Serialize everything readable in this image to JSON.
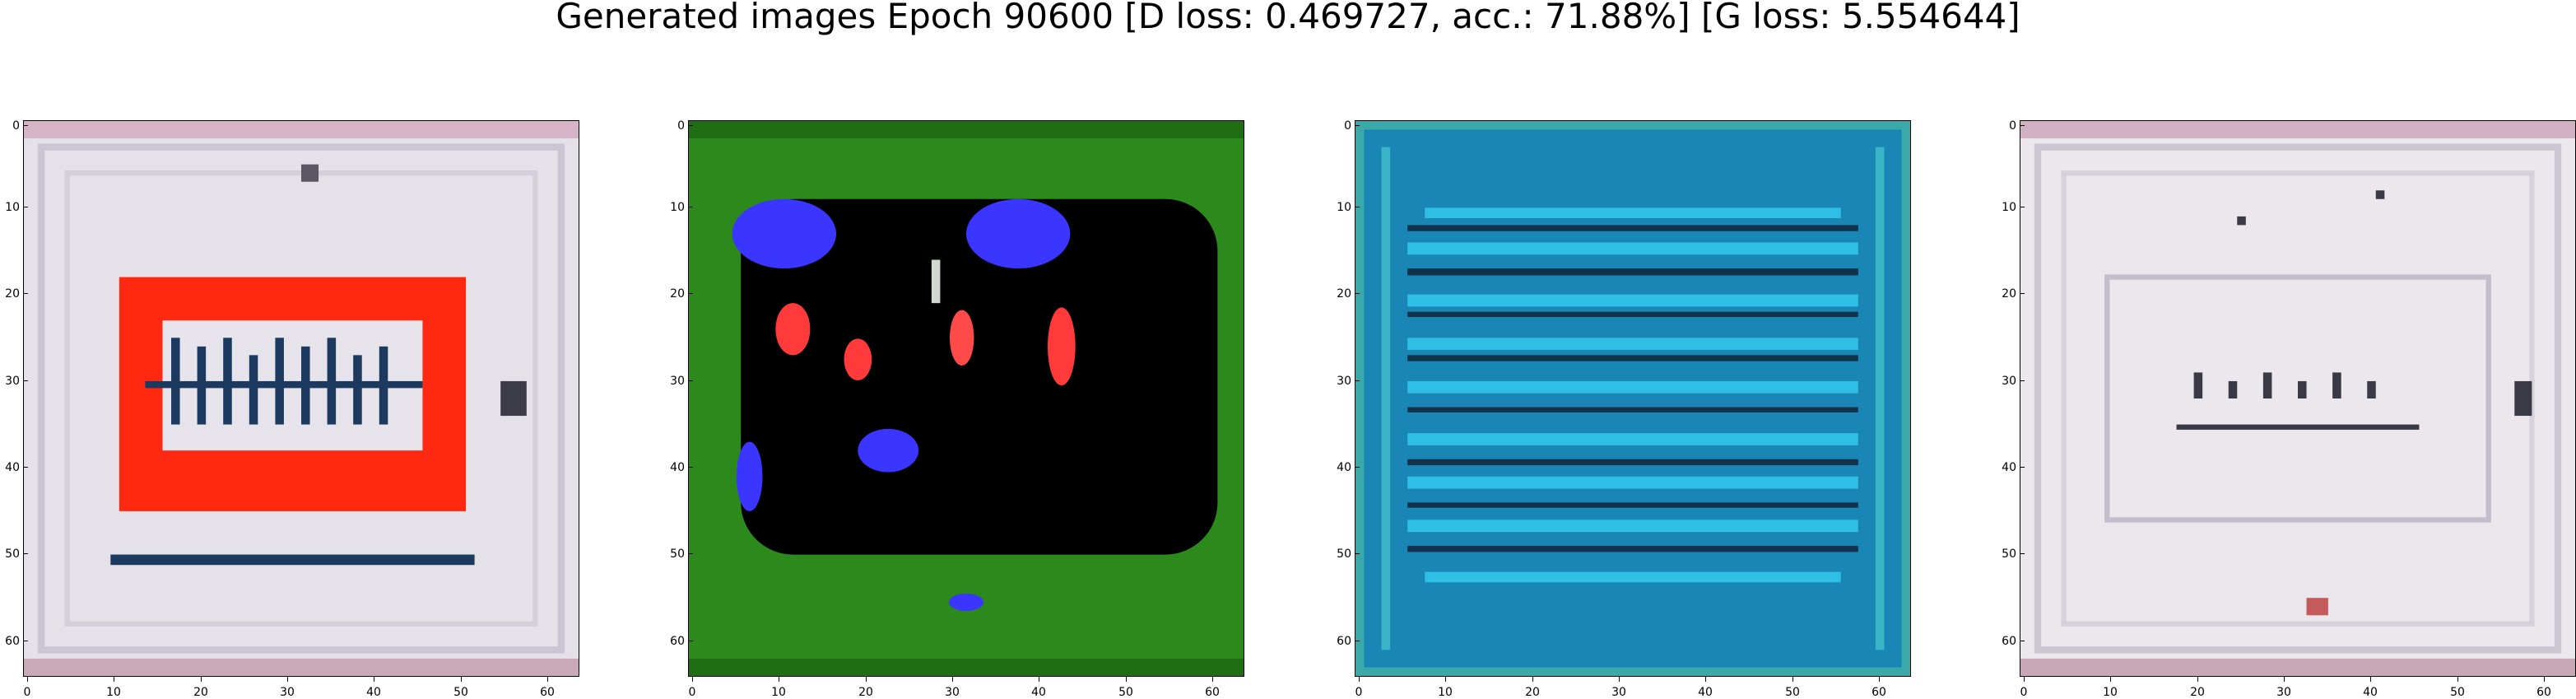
{
  "figure": {
    "title": "Generated images Epoch 90600 [D loss: 0.469727, acc.: 71.88%] [G loss: 5.554644]"
  },
  "axes": {
    "tick_labels": [
      "0",
      "10",
      "20",
      "30",
      "40",
      "50",
      "60"
    ]
  },
  "panels": [
    {
      "dominant_colors": [
        "#e5e2ea",
        "#ff2a10",
        "#1d3b63"
      ],
      "content": "grey-white patterned image with red rectangular frame and dark striped center"
    },
    {
      "dominant_colors": [
        "#2e8c1d",
        "#000000",
        "#3d36ff",
        "#ff3c3c"
      ],
      "content": "green background with large black rounded square, blue blobs and red spots"
    },
    {
      "dominant_colors": [
        "#1b89b8",
        "#33c3e8",
        "#13354a"
      ],
      "content": "teal-blue field with horizontal striped bands"
    },
    {
      "dominant_colors": [
        "#ece8ee",
        "#b9b4c0",
        "#3a3a44"
      ],
      "content": "grey-white noisy pattern with faint inner rectangle"
    }
  ]
}
